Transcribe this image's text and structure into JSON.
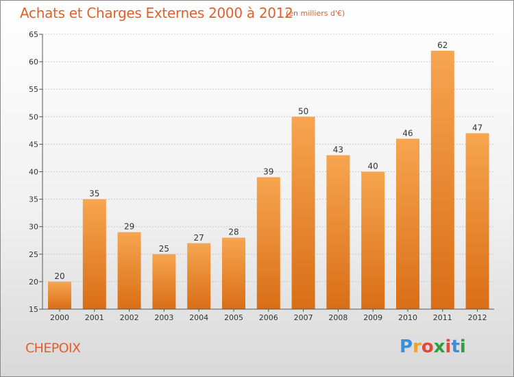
{
  "header": {
    "title": "Achats et Charges Externes 2000 à 2012",
    "subtitle": "(en milliers d'€)"
  },
  "footer": {
    "place": "CHEPOIX",
    "logo_letters": [
      "P",
      "r",
      "o",
      "x",
      "i",
      "t",
      "i"
    ],
    "logo_colors": [
      "#3a8fd6",
      "#f0a12c",
      "#e04a3a",
      "#2f9e3f",
      "#e04a3a",
      "#3a8fd6",
      "#2f9e3f"
    ]
  },
  "chart_data": {
    "type": "bar",
    "title": "Achats et Charges Externes 2000 à 2012",
    "subtitle": "(en milliers d'€)",
    "xlabel": "",
    "ylabel": "",
    "categories": [
      "2000",
      "2001",
      "2002",
      "2003",
      "2004",
      "2005",
      "2006",
      "2007",
      "2008",
      "2009",
      "2010",
      "2011",
      "2012"
    ],
    "values": [
      20,
      35,
      29,
      25,
      27,
      28,
      39,
      50,
      43,
      40,
      46,
      62,
      47
    ],
    "ylim": [
      15,
      65
    ],
    "yticks": [
      15,
      20,
      25,
      30,
      35,
      40,
      45,
      50,
      55,
      60,
      65
    ],
    "grid": "horizontal dotted",
    "legend": "none",
    "colors": {
      "bar_light": "#f7a550",
      "bar_dark": "#d96e16"
    }
  }
}
